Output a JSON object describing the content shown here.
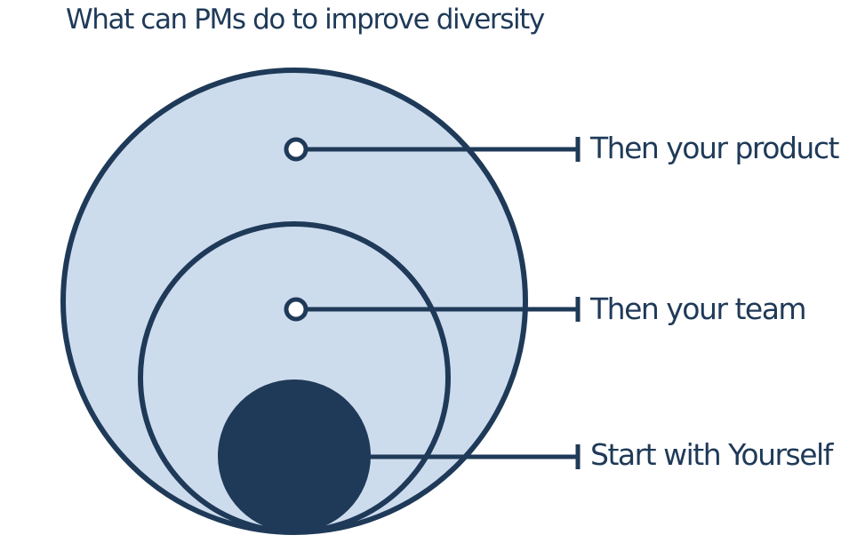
{
  "title": "What can PMs do to improve diversity",
  "levels": [
    {
      "label": "Then your product"
    },
    {
      "label": "Then your team"
    },
    {
      "label": "Start with Yourself"
    }
  ],
  "colors": {
    "outline": "#1f3a58",
    "fill": "#cddced",
    "inner_fill": "#1f3a58",
    "background": "#ffffff"
  }
}
